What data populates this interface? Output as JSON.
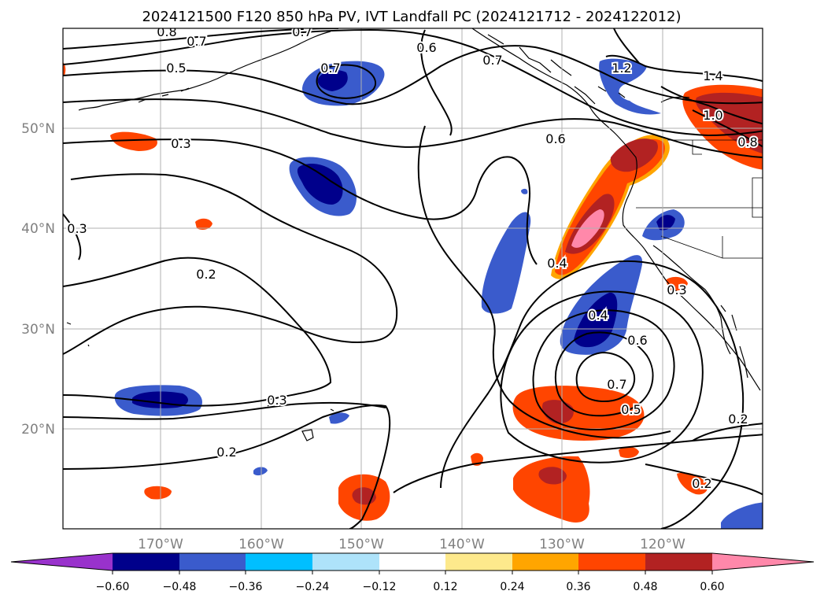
{
  "title": "2024121500 F120 850 hPa PV, IVT Landfall PC (2024121712 - 2024122012)",
  "map": {
    "lon_ticks": [
      "170°W",
      "160°W",
      "150°W",
      "140°W",
      "130°W",
      "120°W"
    ],
    "lat_ticks": [
      "50°N",
      "40°N",
      "30°N",
      "20°N"
    ],
    "contour_labels": [
      "0.8",
      "0.7",
      "0.7",
      "0.6",
      "0.7",
      "0.7",
      "1.4",
      "1.2",
      "0.5",
      "1.0",
      "0.8",
      "0.3",
      "0.6",
      "0.3",
      "0.2",
      "0.4",
      "0.4",
      "0.6",
      "0.7",
      "0.5",
      "0.3",
      "0.2",
      "0.2",
      "0.2",
      "0.3"
    ]
  },
  "colorbar": {
    "ticks": [
      "−0.60",
      "−0.48",
      "−0.36",
      "−0.24",
      "−0.12",
      "0.12",
      "0.24",
      "0.36",
      "0.48",
      "0.60"
    ],
    "colors": [
      "#9932cc",
      "#00008b",
      "#3a5bcc",
      "#00bfff",
      "#aee3fa",
      "#ffffff",
      "#fde98c",
      "#ffa500",
      "#ff4500",
      "#b22222",
      "#ff88aa"
    ]
  },
  "colors": {
    "land_outline": "#000000",
    "grid": "#b0b0b0",
    "tick_text": "#808080"
  }
}
